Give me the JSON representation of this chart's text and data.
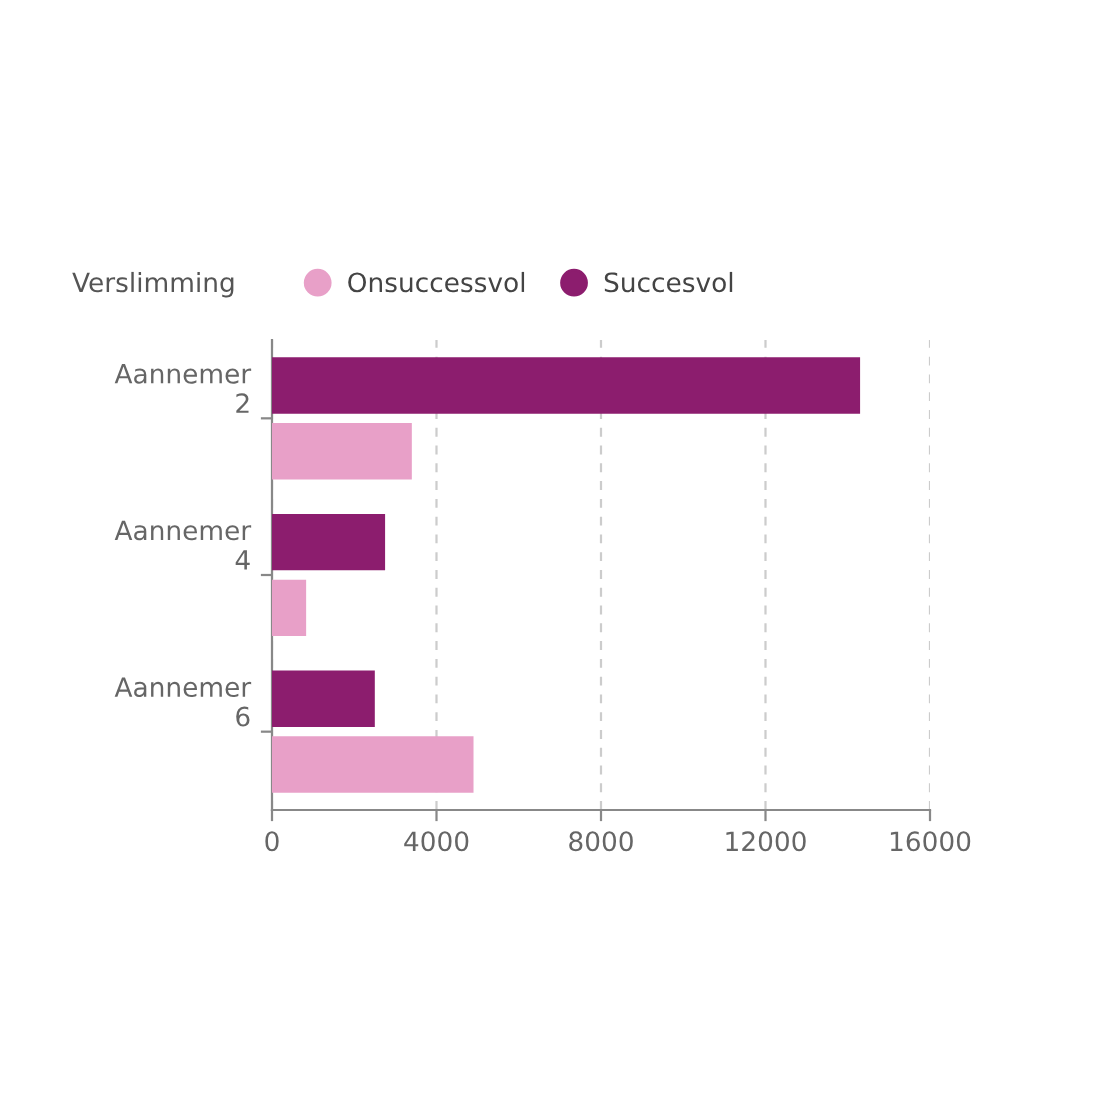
{
  "chart_data": {
    "type": "bar",
    "orientation": "horizontal",
    "legend_title": "Verslimming",
    "legend": "top left",
    "categories": [
      "Aannemer 2",
      "Aannemer 4",
      "Aannemer 6"
    ],
    "series": [
      {
        "name": "Onsuccessvol",
        "color": "#e8a0c8",
        "values": [
          3400,
          830,
          4900
        ]
      },
      {
        "name": "Succesvol",
        "color": "#8c1d6e",
        "values": [
          14300,
          2750,
          2500
        ]
      }
    ],
    "xlim": [
      0,
      16000
    ],
    "xticks": [
      0,
      4000,
      8000,
      12000,
      16000
    ],
    "grid": "x"
  }
}
